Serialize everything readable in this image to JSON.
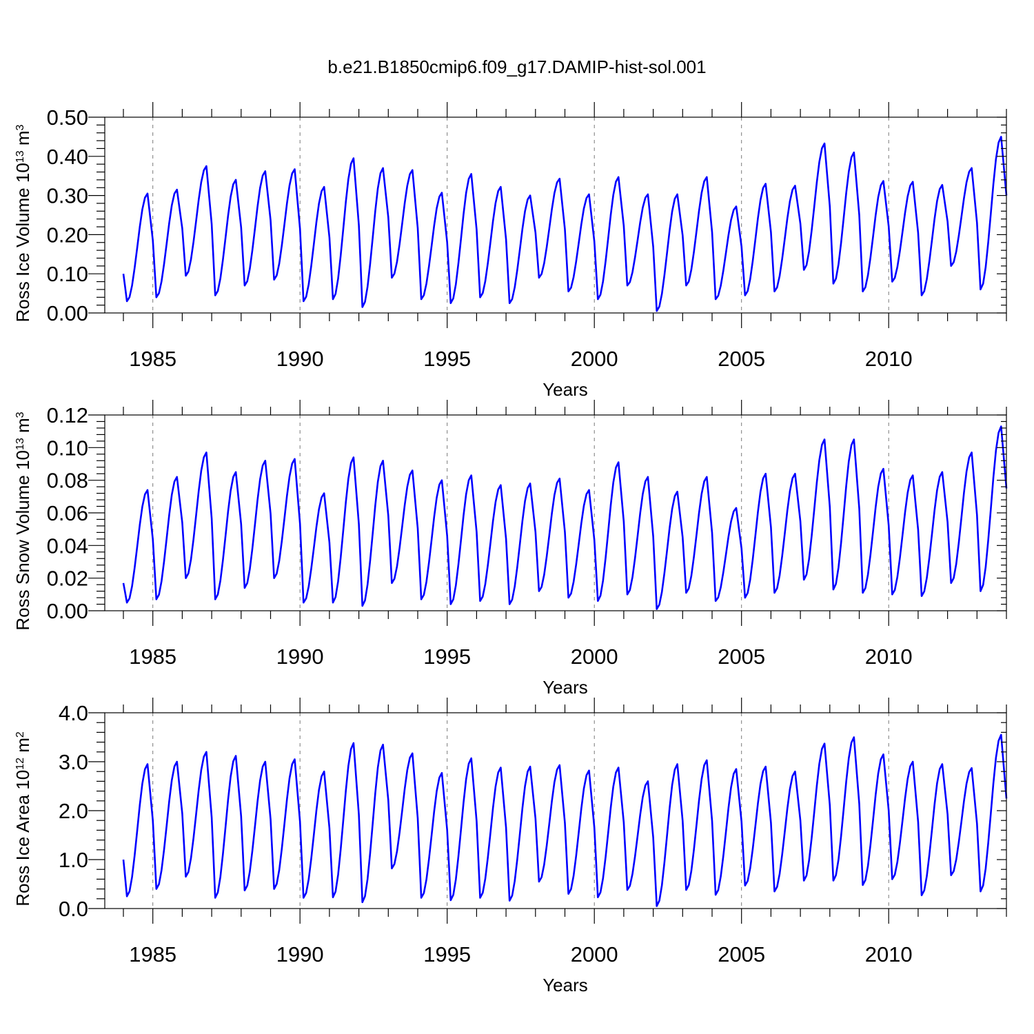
{
  "chart_data": {
    "title": "b.e21.B1850cmip6.f09_g17.DAMIP-hist-sol.001",
    "panels": [
      {
        "type": "line",
        "ylabel": "Ross Ice Volume 10",
        "ylabel_exp": "13",
        "ylabel_unit": " m",
        "ylabel_unit_exp": "3",
        "xlabel": "Years",
        "xlim": [
          1984.0,
          2014.0
        ],
        "ylim": [
          0.0,
          0.5
        ],
        "ytick_values": [
          0.0,
          0.1,
          0.2,
          0.3,
          0.4,
          0.5
        ],
        "ytick_labels": [
          "0.00",
          "0.10",
          "0.20",
          "0.30",
          "0.40",
          "0.50"
        ],
        "xtick_values": [
          1985,
          1990,
          1995,
          2000,
          2005,
          2010
        ],
        "xtick_labels": [
          "1985",
          "1990",
          "1995",
          "2000",
          "2005",
          "2010"
        ],
        "dashed_vlines": [
          1985,
          1990,
          1995,
          2000,
          2005,
          2010
        ],
        "color": "#0000ff",
        "mins": [
          0.03,
          0.04,
          0.095,
          0.045,
          0.07,
          0.085,
          0.03,
          0.035,
          0.015,
          0.09,
          0.035,
          0.025,
          0.04,
          0.025,
          0.09,
          0.055,
          0.035,
          0.07,
          0.005,
          0.07,
          0.035,
          0.045,
          0.055,
          0.11,
          0.075,
          0.055,
          0.08,
          0.045,
          0.12,
          0.06
        ],
        "maxs": [
          0.305,
          0.315,
          0.375,
          0.34,
          0.362,
          0.367,
          0.322,
          0.395,
          0.37,
          0.365,
          0.307,
          0.355,
          0.322,
          0.3,
          0.343,
          0.303,
          0.347,
          0.303,
          0.303,
          0.347,
          0.272,
          0.33,
          0.325,
          0.433,
          0.41,
          0.337,
          0.335,
          0.327,
          0.37,
          0.45
        ],
        "start": 0.1,
        "end": 0.3
      },
      {
        "type": "line",
        "ylabel": "Ross Snow Volume 10",
        "ylabel_exp": "13",
        "ylabel_unit": " m",
        "ylabel_unit_exp": "3",
        "xlabel": "Years",
        "xlim": [
          1984.0,
          2014.0
        ],
        "ylim": [
          0.0,
          0.12
        ],
        "ytick_values": [
          0.0,
          0.02,
          0.04,
          0.06,
          0.08,
          0.1,
          0.12
        ],
        "ytick_labels": [
          "0.00",
          "0.02",
          "0.04",
          "0.06",
          "0.08",
          "0.10",
          "0.12"
        ],
        "xtick_values": [
          1985,
          1990,
          1995,
          2000,
          2005,
          2010
        ],
        "xtick_labels": [
          "1985",
          "1990",
          "1995",
          "2000",
          "2005",
          "2010"
        ],
        "dashed_vlines": [
          1985,
          1990,
          1995,
          2000,
          2005,
          2010
        ],
        "color": "#0000ff",
        "mins": [
          0.005,
          0.007,
          0.02,
          0.007,
          0.014,
          0.02,
          0.005,
          0.005,
          0.003,
          0.017,
          0.007,
          0.004,
          0.006,
          0.004,
          0.012,
          0.008,
          0.006,
          0.01,
          0.001,
          0.011,
          0.006,
          0.008,
          0.011,
          0.019,
          0.013,
          0.011,
          0.01,
          0.009,
          0.017,
          0.012
        ],
        "maxs": [
          0.074,
          0.082,
          0.097,
          0.085,
          0.092,
          0.093,
          0.072,
          0.094,
          0.092,
          0.086,
          0.08,
          0.083,
          0.077,
          0.078,
          0.081,
          0.074,
          0.091,
          0.082,
          0.073,
          0.082,
          0.063,
          0.084,
          0.084,
          0.105,
          0.105,
          0.087,
          0.083,
          0.085,
          0.097,
          0.113
        ],
        "start": 0.017,
        "end": 0.075
      },
      {
        "type": "line",
        "ylabel": "Ross Ice Area 10",
        "ylabel_exp": "12",
        "ylabel_unit": " m",
        "ylabel_unit_exp": "2",
        "xlabel": "Years",
        "xlim": [
          1984.0,
          2014.0
        ],
        "ylim": [
          0.0,
          4.0
        ],
        "ytick_values": [
          0.0,
          1.0,
          2.0,
          3.0,
          4.0
        ],
        "ytick_labels": [
          "0.0",
          "1.0",
          "2.0",
          "3.0",
          "4.0"
        ],
        "xtick_values": [
          1985,
          1990,
          1995,
          2000,
          2005,
          2010
        ],
        "xtick_labels": [
          "1985",
          "1990",
          "1995",
          "2000",
          "2005",
          "2010"
        ],
        "dashed_vlines": [
          1985,
          1990,
          1995,
          2000,
          2005,
          2010
        ],
        "color": "#0000ff",
        "mins": [
          0.25,
          0.4,
          0.65,
          0.22,
          0.37,
          0.4,
          0.22,
          0.23,
          0.13,
          0.82,
          0.22,
          0.17,
          0.22,
          0.16,
          0.55,
          0.3,
          0.23,
          0.38,
          0.05,
          0.38,
          0.28,
          0.47,
          0.35,
          0.57,
          0.57,
          0.48,
          0.6,
          0.27,
          0.68,
          0.35
        ],
        "maxs": [
          2.95,
          3.0,
          3.2,
          3.12,
          3.0,
          3.05,
          2.8,
          3.38,
          3.35,
          3.17,
          2.77,
          3.07,
          2.88,
          2.9,
          2.93,
          2.82,
          2.88,
          2.6,
          2.95,
          3.03,
          2.85,
          2.9,
          2.8,
          3.37,
          3.5,
          3.15,
          3.0,
          2.95,
          2.87,
          3.55
        ],
        "start": 1.0,
        "end": 2.25
      }
    ]
  }
}
